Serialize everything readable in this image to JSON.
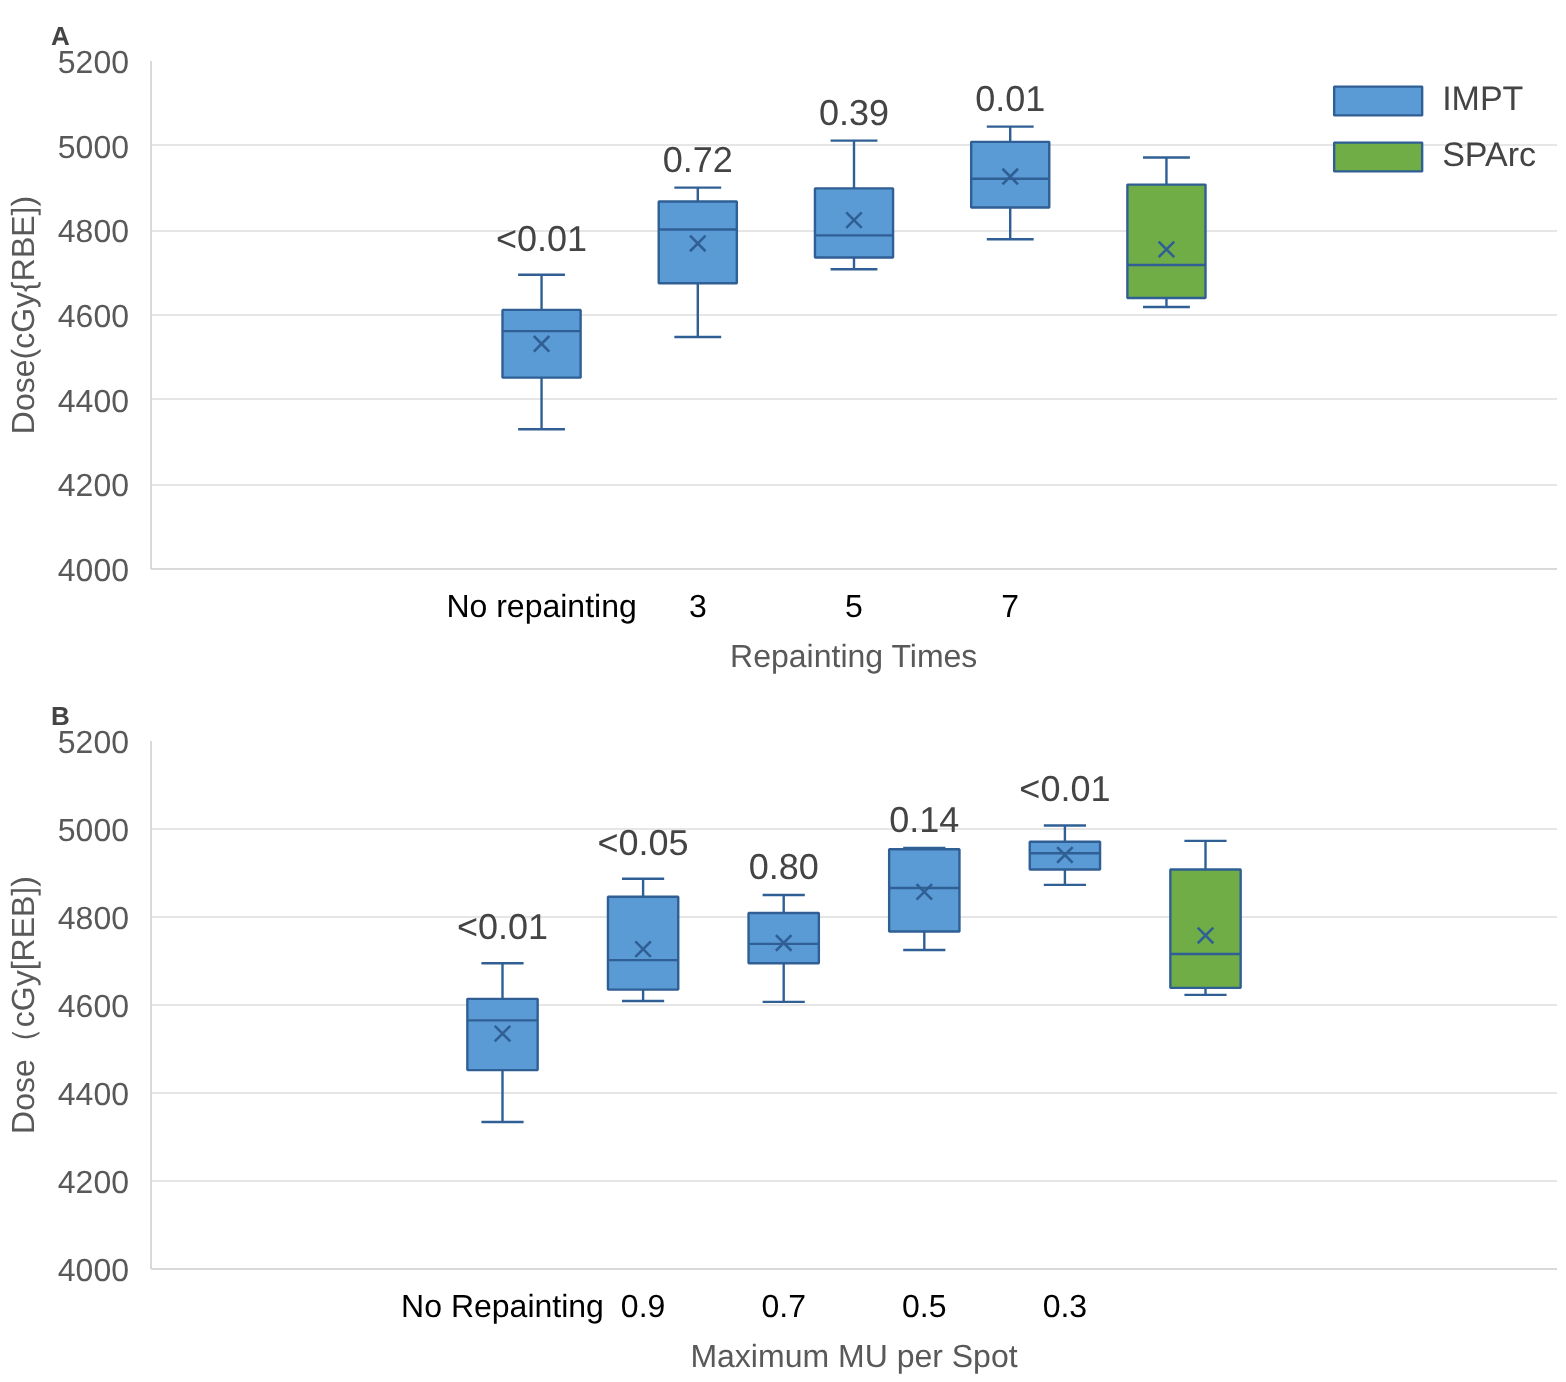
{
  "chart_data": [
    {
      "type": "box",
      "title": "A",
      "xlabel": "Repainting Times",
      "ylabel": "Dose(cGy{RBE])",
      "categories": [
        null,
        null,
        "No repainting",
        "3",
        "5",
        "7",
        null,
        null,
        null
      ],
      "ylim": [
        4000,
        5200
      ],
      "yticks": [
        4000,
        4200,
        4400,
        4600,
        4800,
        5000,
        5200
      ],
      "grid": "y",
      "legend": "top right",
      "marker": "cross",
      "series": [
        {
          "name": "IMPT",
          "color": "#5b9bd5",
          "boxes": [
            null,
            null,
            {
              "low": 4330,
              "q1": 4452,
              "median": 4562,
              "q3": 4612,
              "high": 4695,
              "mean": 4532
            },
            {
              "low": 4548,
              "q1": 4675,
              "median": 4802,
              "q3": 4868,
              "high": 4901,
              "mean": 4769
            },
            {
              "low": 4708,
              "q1": 4736,
              "median": 4788,
              "q3": 4899,
              "high": 5012,
              "mean": 4824
            },
            {
              "low": 4779,
              "q1": 4854,
              "median": 4922,
              "q3": 5009,
              "high": 5045,
              "mean": 4927
            },
            null,
            null,
            null
          ]
        },
        {
          "name": "SPArc",
          "color": "#70ad47",
          "boxes": [
            null,
            null,
            null,
            null,
            null,
            null,
            {
              "low": 4619,
              "q1": 4640,
              "median": 4718,
              "q3": 4908,
              "high": 4972,
              "mean": 4755
            },
            null,
            null
          ]
        }
      ],
      "annotations": [
        "<0.01",
        "0.72",
        "0.39",
        "0.01"
      ]
    },
    {
      "type": "box",
      "title": "B",
      "xlabel": "Maximum MU per Spot",
      "ylabel": "Dose（cGy[REB])",
      "categories": [
        null,
        null,
        "No Repainting",
        "0.9",
        "0.7",
        "0.5",
        "0.3",
        null,
        null,
        null
      ],
      "ylim": [
        4000,
        5200
      ],
      "yticks": [
        4000,
        4200,
        4400,
        4600,
        4800,
        5000,
        5200
      ],
      "grid": "y",
      "marker": "cross",
      "series": [
        {
          "color": "#5b9bd5",
          "boxes": [
            null,
            null,
            {
              "low": 4334,
              "q1": 4452,
              "median": 4565,
              "q3": 4614,
              "high": 4695,
              "mean": 4535
            },
            {
              "low": 4609,
              "q1": 4635,
              "median": 4702,
              "q3": 4846,
              "high": 4887,
              "mean": 4727
            },
            {
              "low": 4607,
              "q1": 4695,
              "median": 4739,
              "q3": 4809,
              "high": 4850,
              "mean": 4741
            },
            {
              "low": 4725,
              "q1": 4767,
              "median": 4866,
              "q3": 4954,
              "high": 4957,
              "mean": 4857
            },
            {
              "low": 4873,
              "q1": 4908,
              "median": 4945,
              "q3": 4971,
              "high": 5008,
              "mean": 4941
            },
            null,
            null,
            null
          ]
        },
        {
          "color": "#70ad47",
          "boxes": [
            null,
            null,
            null,
            null,
            null,
            null,
            null,
            {
              "low": 4623,
              "q1": 4639,
              "median": 4716,
              "q3": 4908,
              "high": 4973,
              "mean": 4758
            },
            null,
            null
          ]
        }
      ],
      "annotations": [
        "<0.01",
        "<0.05",
        "0.80",
        "0.14",
        "<0.01"
      ]
    }
  ]
}
